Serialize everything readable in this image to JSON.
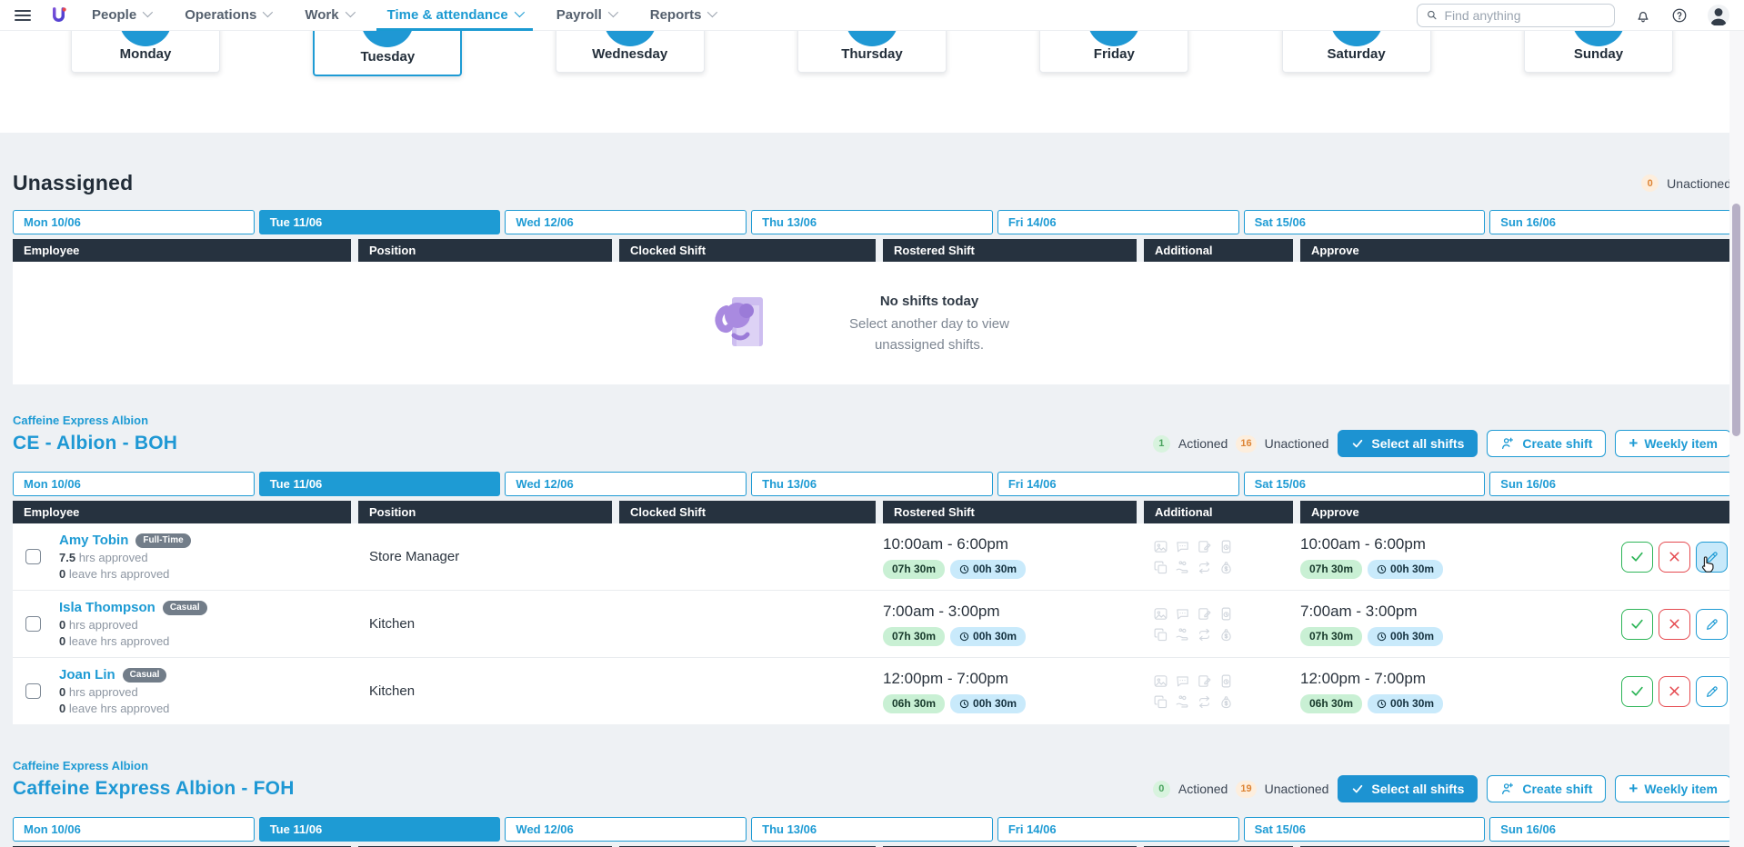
{
  "colors": {
    "primary_blue": "#1e9bd4",
    "header_dark": "#26323f",
    "badge_green_bg": "#c9f0d4",
    "badge_blue_bg": "#c9eafb",
    "actioned_green": "#4aa35f",
    "unactioned_orange": "#dd8435",
    "illustration_purple": "#a98ae0"
  },
  "nav": {
    "items": [
      {
        "label": "People",
        "active": false
      },
      {
        "label": "Operations",
        "active": false
      },
      {
        "label": "Work",
        "active": false
      },
      {
        "label": "Time & attendance",
        "active": true
      },
      {
        "label": "Payroll",
        "active": false
      },
      {
        "label": "Reports",
        "active": false
      }
    ],
    "search_placeholder": "Find anything"
  },
  "week": {
    "days": [
      "Monday",
      "Tuesday",
      "Wednesday",
      "Thursday",
      "Friday",
      "Saturday",
      "Sunday"
    ],
    "selected": "Tuesday"
  },
  "date_tabs": {
    "labels": [
      "Mon 10/06",
      "Tue 11/06",
      "Wed 12/06",
      "Thu 13/06",
      "Fri 14/06",
      "Sat 15/06",
      "Sun 16/06"
    ],
    "selected": "Tue 11/06"
  },
  "table_columns": [
    "Employee",
    "Position",
    "Clocked Shift",
    "Rostered Shift",
    "Additional",
    "Approve"
  ],
  "additional_icons": [
    "photo-icon",
    "comment-icon",
    "note-icon",
    "mobile-clock-icon",
    "copy-icon",
    "tips-icon",
    "shift-swap-icon",
    "money-bag-icon"
  ],
  "labels": {
    "actioned": "Actioned",
    "unactioned": "Unactioned"
  },
  "actions": {
    "select_all": "Select all shifts",
    "create_shift": "Create shift",
    "weekly_item": "Weekly item"
  },
  "unassigned": {
    "title": "Unassigned",
    "unactioned_count": "0",
    "empty_title": "No shifts today",
    "empty_line1": "Select another day to view",
    "empty_line2": "unassigned shifts."
  },
  "sections": [
    {
      "org": "Caffeine Express Albion",
      "title": "CE - Albion - BOH",
      "actioned_count": "1",
      "unactioned_count": "16",
      "rows": [
        {
          "name": "Amy Tobin",
          "employment": "Full-Time",
          "hours_approved": "7.5",
          "hours_label": "hrs approved",
          "leave_approved": "0",
          "leave_label": "leave hrs approved",
          "position": "Store Manager",
          "rostered_time": "10:00am - 6:00pm",
          "duration": "07h 30m",
          "break": "00h 30m",
          "approve_time": "10:00am - 6:00pm",
          "edit_hovered": true
        },
        {
          "name": "Isla Thompson",
          "employment": "Casual",
          "hours_approved": "0",
          "hours_label": "hrs approved",
          "leave_approved": "0",
          "leave_label": "leave hrs approved",
          "position": "Kitchen",
          "rostered_time": "7:00am - 3:00pm",
          "duration": "07h 30m",
          "break": "00h 30m",
          "approve_time": "7:00am - 3:00pm",
          "edit_hovered": false
        },
        {
          "name": "Joan Lin",
          "employment": "Casual",
          "hours_approved": "0",
          "hours_label": "hrs approved",
          "leave_approved": "0",
          "leave_label": "leave hrs approved",
          "position": "Kitchen",
          "rostered_time": "12:00pm - 7:00pm",
          "duration": "06h 30m",
          "break": "00h 30m",
          "approve_time": "12:00pm - 7:00pm",
          "edit_hovered": false
        }
      ]
    },
    {
      "org": "Caffeine Express Albion",
      "title": "Caffeine Express Albion - FOH",
      "actioned_count": "0",
      "unactioned_count": "19",
      "rows": []
    }
  ]
}
